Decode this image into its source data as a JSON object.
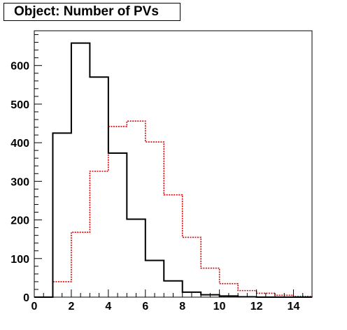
{
  "chart_data": {
    "type": "histogram",
    "title": "Object: Number of PVs",
    "xlabel": "",
    "ylabel": "",
    "xlim": [
      0,
      15
    ],
    "ylim": [
      0,
      690
    ],
    "x_ticks": [
      0,
      2,
      4,
      6,
      8,
      10,
      12,
      14
    ],
    "y_ticks": [
      0,
      100,
      200,
      300,
      400,
      500,
      600
    ],
    "bin_edges": [
      0,
      1,
      2,
      3,
      4,
      5,
      6,
      7,
      8,
      9,
      10,
      11,
      12,
      13,
      14,
      15
    ],
    "grid": false,
    "legend": "none",
    "series": [
      {
        "color": "#000000",
        "style": "solid",
        "values": [
          0,
          425,
          658,
          570,
          373,
          202,
          95,
          42,
          13,
          6,
          3,
          1,
          0,
          0,
          0
        ]
      },
      {
        "color": "#e00000",
        "style": "dotted",
        "values": [
          0,
          40,
          168,
          326,
          442,
          456,
          402,
          265,
          155,
          75,
          35,
          17,
          10,
          5,
          2
        ]
      }
    ]
  }
}
